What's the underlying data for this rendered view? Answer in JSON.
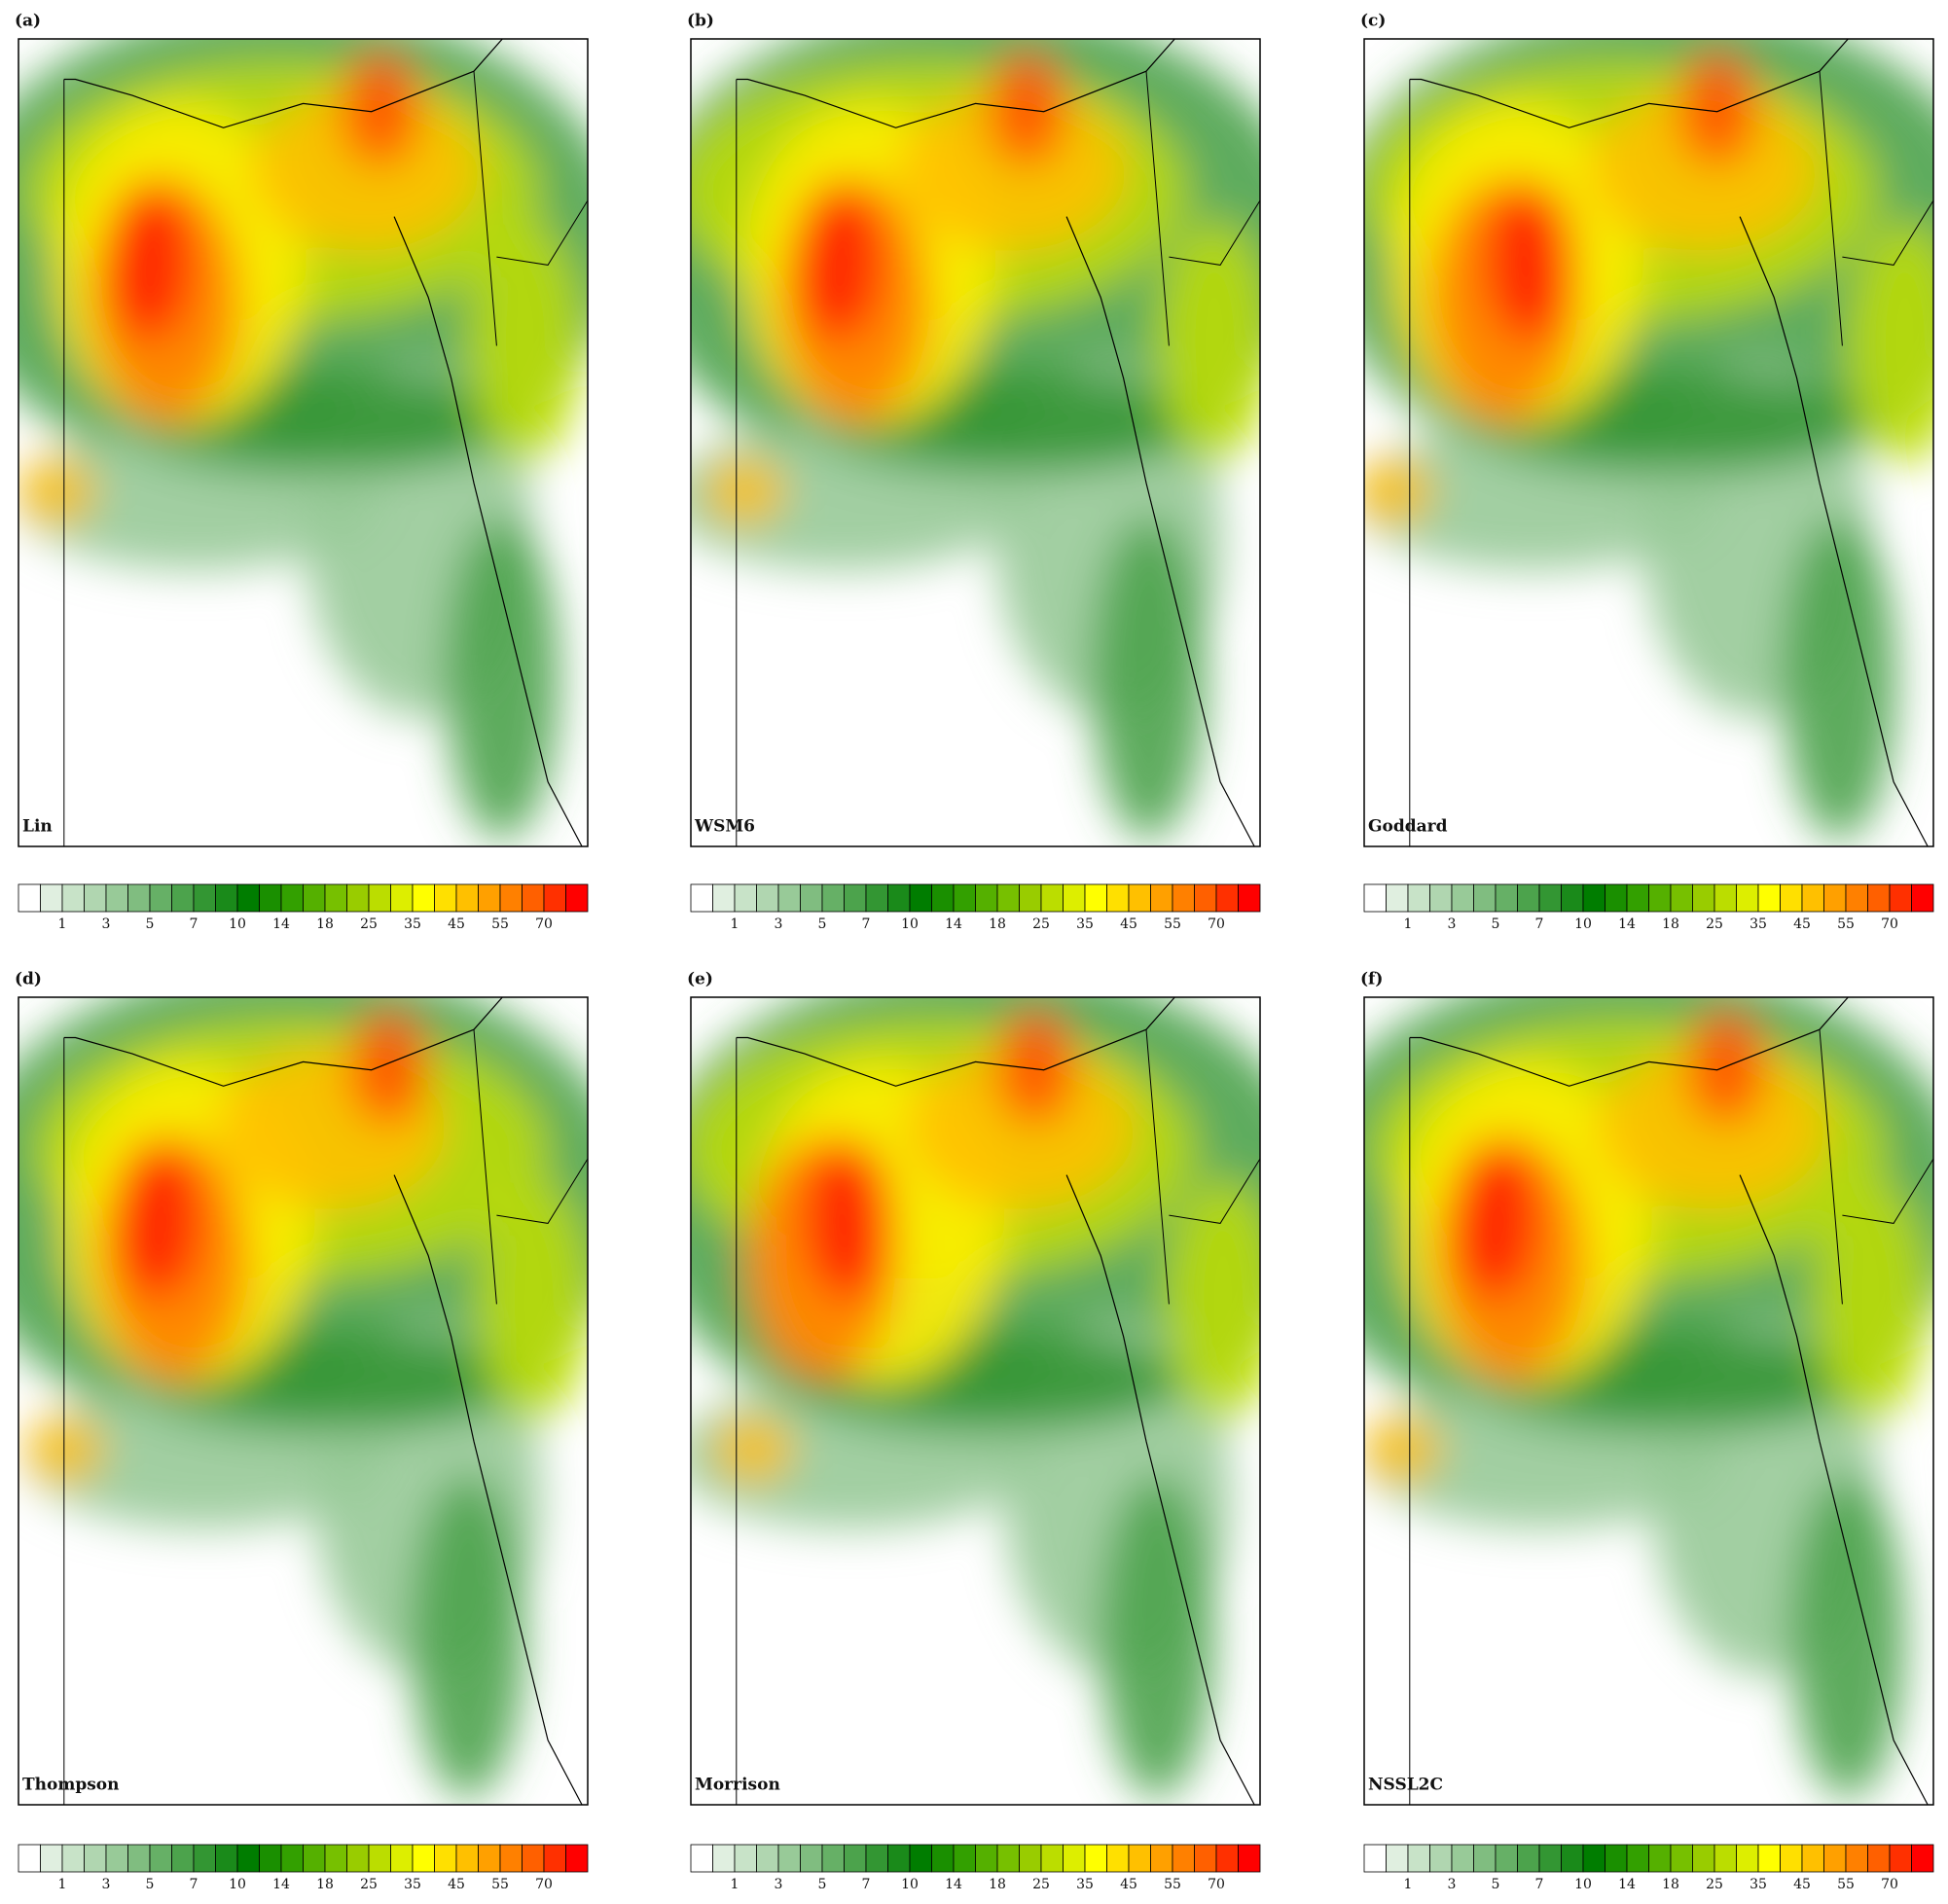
{
  "panels": [
    {
      "tag": "(a)",
      "name": "Lin"
    },
    {
      "tag": "(b)",
      "name": "WSM6"
    },
    {
      "tag": "(c)",
      "name": "Goddard"
    },
    {
      "tag": "(d)",
      "name": "Thompson"
    },
    {
      "tag": "(e)",
      "name": "Morrison"
    },
    {
      "tag": "(f)",
      "name": "NSSL2C"
    }
  ],
  "colorbar": {
    "colors": [
      "#ffffff",
      "#e0efe0",
      "#c8e3c8",
      "#b0d6b0",
      "#98ca98",
      "#80bd80",
      "#66b066",
      "#4ca34c",
      "#339633",
      "#1a8a1a",
      "#007d00",
      "#1a8f00",
      "#33a000",
      "#55b000",
      "#77c000",
      "#99cc00",
      "#bbdd00",
      "#ddee00",
      "#ffff00",
      "#ffe000",
      "#ffc000",
      "#ffa000",
      "#ff8000",
      "#ff6000",
      "#ff3000",
      "#ff0000"
    ],
    "labels": [
      1,
      3,
      5,
      7,
      10,
      14,
      18,
      25,
      35,
      45,
      55,
      70
    ]
  }
}
